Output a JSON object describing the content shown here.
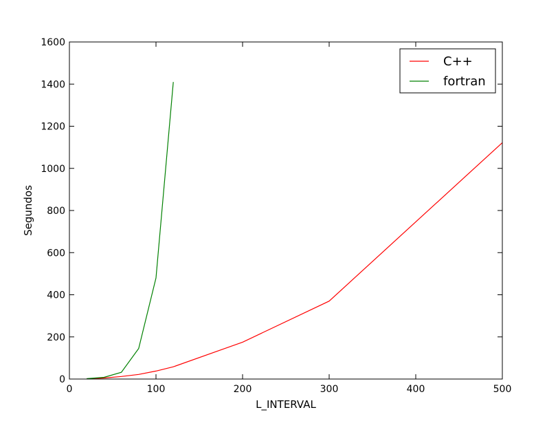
{
  "chart_data": {
    "type": "line",
    "title": "",
    "xlabel": "L_INTERVAL",
    "ylabel": "Segundos",
    "xlim": [
      0,
      500
    ],
    "ylim": [
      0,
      1600
    ],
    "x_ticks": [
      0,
      100,
      200,
      300,
      400,
      500
    ],
    "y_ticks": [
      0,
      200,
      400,
      600,
      800,
      1000,
      1200,
      1400,
      1600
    ],
    "grid": false,
    "legend_position": "top-right",
    "series": [
      {
        "name": "C++",
        "color": "#ff0000",
        "x": [
          20,
          40,
          60,
          80,
          100,
          120,
          200,
          300,
          500
        ],
        "y": [
          1,
          5,
          12,
          22,
          38,
          58,
          175,
          370,
          1122
        ]
      },
      {
        "name": "fortran",
        "color": "#008000",
        "x": [
          20,
          40,
          60,
          80,
          100,
          120
        ],
        "y": [
          2,
          8,
          32,
          145,
          480,
          1410
        ]
      }
    ]
  }
}
